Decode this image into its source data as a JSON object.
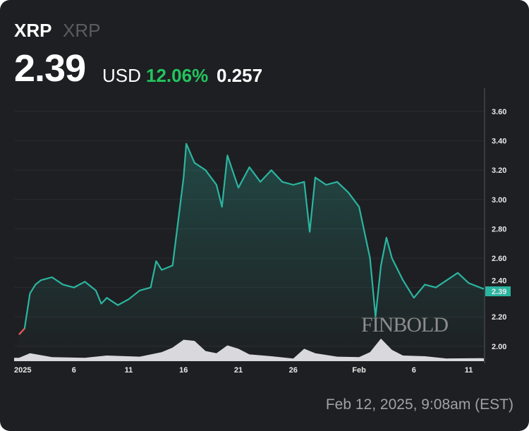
{
  "header": {
    "symbol": "XRP",
    "name": "XRP",
    "price": "2.39",
    "currency": "USD",
    "change_pct": "12.06%",
    "change_abs": "0.257"
  },
  "timestamp": "Feb 12, 2025, 9:08am (EST)",
  "watermark": "FINBOLD",
  "colors": {
    "background": "#1e1f22",
    "line": "#2bb5a0",
    "line_down": "#ef5350",
    "volume": "#d9d9dd",
    "positive": "#22c55e"
  },
  "chart_data": {
    "type": "area",
    "ylim": [
      1.9,
      3.75
    ],
    "yticks": [
      "2.00",
      "2.20",
      "2.40",
      "2.60",
      "2.80",
      "3.00",
      "3.20",
      "3.40",
      "3.60"
    ],
    "xtick_labels": [
      {
        "label": "2025",
        "date": "2025-01-01"
      },
      {
        "label": "6",
        "date": "2025-01-06"
      },
      {
        "label": "11",
        "date": "2025-01-11"
      },
      {
        "label": "16",
        "date": "2025-01-16"
      },
      {
        "label": "21",
        "date": "2025-01-21"
      },
      {
        "label": "26",
        "date": "2025-01-26"
      },
      {
        "label": "Feb",
        "date": "2025-02-01"
      },
      {
        "label": "6",
        "date": "2025-02-06"
      },
      {
        "label": "11",
        "date": "2025-02-11"
      }
    ],
    "last_price_label": "2.39",
    "grid": true,
    "series": [
      {
        "values": [
          [
            "2025-01-01T00:00",
            2.08
          ],
          [
            "2025-01-01T12:00",
            2.12
          ],
          [
            "2025-01-02T00:00",
            2.36
          ],
          [
            "2025-01-02T12:00",
            2.42
          ],
          [
            "2025-01-03T00:00",
            2.45
          ],
          [
            "2025-01-04T00:00",
            2.47
          ],
          [
            "2025-01-05T00:00",
            2.42
          ],
          [
            "2025-01-06T00:00",
            2.4
          ],
          [
            "2025-01-07T00:00",
            2.44
          ],
          [
            "2025-01-08T00:00",
            2.38
          ],
          [
            "2025-01-08T12:00",
            2.29
          ],
          [
            "2025-01-09T00:00",
            2.33
          ],
          [
            "2025-01-10T00:00",
            2.28
          ],
          [
            "2025-01-11T00:00",
            2.32
          ],
          [
            "2025-01-12T00:00",
            2.38
          ],
          [
            "2025-01-13T00:00",
            2.4
          ],
          [
            "2025-01-13T12:00",
            2.58
          ],
          [
            "2025-01-14T00:00",
            2.52
          ],
          [
            "2025-01-15T00:00",
            2.55
          ],
          [
            "2025-01-15T12:00",
            2.85
          ],
          [
            "2025-01-16T00:00",
            3.15
          ],
          [
            "2025-01-16T06:00",
            3.38
          ],
          [
            "2025-01-17T00:00",
            3.25
          ],
          [
            "2025-01-18T00:00",
            3.2
          ],
          [
            "2025-01-19T00:00",
            3.1
          ],
          [
            "2025-01-19T12:00",
            2.95
          ],
          [
            "2025-01-20T00:00",
            3.3
          ],
          [
            "2025-01-21T00:00",
            3.08
          ],
          [
            "2025-01-22T00:00",
            3.22
          ],
          [
            "2025-01-23T00:00",
            3.12
          ],
          [
            "2025-01-24T00:00",
            3.2
          ],
          [
            "2025-01-25T00:00",
            3.12
          ],
          [
            "2025-01-26T00:00",
            3.1
          ],
          [
            "2025-01-27T00:00",
            3.12
          ],
          [
            "2025-01-27T12:00",
            2.78
          ],
          [
            "2025-01-28T00:00",
            3.15
          ],
          [
            "2025-01-29T00:00",
            3.1
          ],
          [
            "2025-01-30T00:00",
            3.12
          ],
          [
            "2025-01-31T00:00",
            3.05
          ],
          [
            "2025-02-01T00:00",
            2.95
          ],
          [
            "2025-02-02T00:00",
            2.6
          ],
          [
            "2025-02-02T12:00",
            2.2
          ],
          [
            "2025-02-03T00:00",
            2.55
          ],
          [
            "2025-02-03T12:00",
            2.74
          ],
          [
            "2025-02-04T00:00",
            2.6
          ],
          [
            "2025-02-05T00:00",
            2.45
          ],
          [
            "2025-02-06T00:00",
            2.33
          ],
          [
            "2025-02-07T00:00",
            2.42
          ],
          [
            "2025-02-08T00:00",
            2.4
          ],
          [
            "2025-02-09T00:00",
            2.45
          ],
          [
            "2025-02-10T00:00",
            2.5
          ],
          [
            "2025-02-11T00:00",
            2.43
          ],
          [
            "2025-02-12T09:00",
            2.39
          ]
        ]
      }
    ],
    "volume_relative": [
      [
        "2025-01-01",
        0.15
      ],
      [
        "2025-01-02",
        0.35
      ],
      [
        "2025-01-04",
        0.18
      ],
      [
        "2025-01-07",
        0.15
      ],
      [
        "2025-01-09",
        0.25
      ],
      [
        "2025-01-12",
        0.2
      ],
      [
        "2025-01-14",
        0.4
      ],
      [
        "2025-01-15",
        0.6
      ],
      [
        "2025-01-16",
        0.95
      ],
      [
        "2025-01-17",
        0.9
      ],
      [
        "2025-01-18",
        0.45
      ],
      [
        "2025-01-19",
        0.35
      ],
      [
        "2025-01-20",
        0.7
      ],
      [
        "2025-01-21",
        0.55
      ],
      [
        "2025-01-22",
        0.3
      ],
      [
        "2025-01-24",
        0.22
      ],
      [
        "2025-01-26",
        0.12
      ],
      [
        "2025-01-27",
        0.55
      ],
      [
        "2025-01-28",
        0.35
      ],
      [
        "2025-01-30",
        0.2
      ],
      [
        "2025-02-01",
        0.18
      ],
      [
        "2025-02-02",
        0.4
      ],
      [
        "2025-02-03",
        1.0
      ],
      [
        "2025-02-04",
        0.5
      ],
      [
        "2025-02-05",
        0.25
      ],
      [
        "2025-02-07",
        0.22
      ],
      [
        "2025-02-09",
        0.12
      ],
      [
        "2025-02-12",
        0.13
      ]
    ]
  }
}
